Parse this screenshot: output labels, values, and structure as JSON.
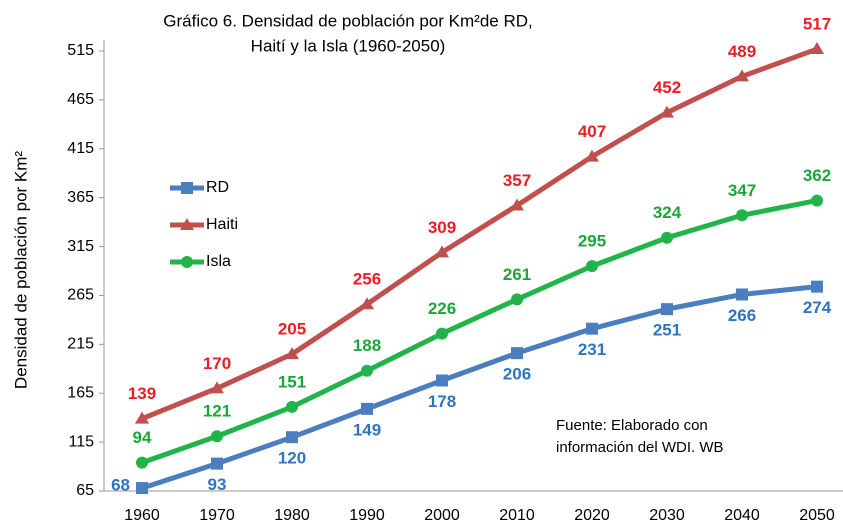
{
  "chart_data": {
    "type": "line",
    "title": [
      "Gráfico 6. Densidad de población por Km²de RD,",
      "Haití y la Isla (1960-2050)"
    ],
    "y_label": "Densidad de población por Km²",
    "annotation": [
      "Fuente: Elaborado con",
      "información del WDI. WB"
    ],
    "categories": [
      "1960",
      "1970",
      "1980",
      "1990",
      "2000",
      "2010",
      "2020",
      "2030",
      "2040",
      "2050"
    ],
    "series": [
      {
        "name": "RD",
        "color": "#4a7ebf",
        "label_color": "#2e74c0",
        "marker": "square",
        "values": [
          68,
          93,
          120,
          149,
          178,
          206,
          231,
          251,
          266,
          274
        ]
      },
      {
        "name": "Haiti",
        "color": "#c0504d",
        "label_color": "#ee1c25",
        "marker": "triangle",
        "values": [
          139,
          170,
          205,
          256,
          309,
          357,
          407,
          452,
          489,
          517
        ]
      },
      {
        "name": "Isla",
        "color": "#22b34a",
        "label_color": "#1da53c",
        "marker": "circle",
        "values": [
          94,
          121,
          151,
          188,
          226,
          261,
          295,
          324,
          347,
          362
        ]
      }
    ],
    "ylim": [
      65,
      515
    ],
    "yticks": [
      65,
      115,
      165,
      215,
      265,
      315,
      365,
      415,
      465,
      515
    ],
    "grid": false,
    "legend": "upper left"
  }
}
